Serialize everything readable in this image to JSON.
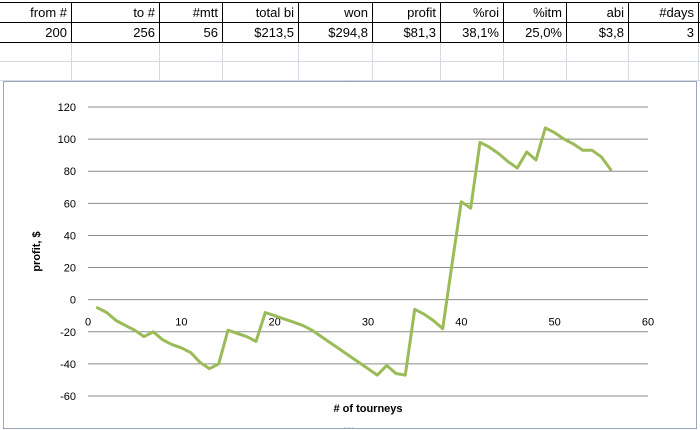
{
  "table": {
    "headers": [
      "from #",
      "to #",
      "#mtt",
      "total bi",
      "won",
      "profit",
      "%roi",
      "%itm",
      "abi",
      "#days"
    ],
    "values": [
      "200",
      "256",
      "56",
      "$213,5",
      "$294,8",
      "$81,3",
      "38,1%",
      "25,0%",
      "$3,8",
      "3"
    ]
  },
  "chart_data": {
    "type": "line",
    "xlabel": "# of tourneys",
    "ylabel": "profit, $",
    "xlim": [
      0,
      60
    ],
    "ylim": [
      -60,
      120
    ],
    "x_ticks": [
      "0",
      "10",
      "20",
      "30",
      "40",
      "50",
      "60"
    ],
    "y_ticks": [
      "120",
      "100",
      "80",
      "60",
      "40",
      "20",
      "0",
      "-20",
      "-40",
      "-60"
    ],
    "grid": "horizontal",
    "line_color": "#9bbb59",
    "series": [
      {
        "x": [
          1,
          2,
          3,
          4,
          5,
          6,
          7,
          8,
          9,
          10,
          11,
          12,
          13,
          14,
          15,
          16,
          17,
          18,
          19,
          20,
          21,
          22,
          23,
          24,
          25,
          26,
          27,
          28,
          29,
          30,
          31,
          32,
          33,
          34,
          35,
          36,
          37,
          38,
          39,
          40,
          41,
          42,
          43,
          44,
          45,
          46,
          47,
          48,
          49,
          50,
          51,
          52,
          53,
          54,
          55,
          56
        ],
        "y": [
          -5,
          -8,
          -13,
          -16,
          -19,
          -23,
          -20,
          -25,
          -28,
          -30,
          -33,
          -39,
          -43,
          -40,
          -19,
          -21,
          -23,
          -26,
          -8,
          -10,
          -12,
          -14,
          -16,
          -19,
          -23,
          -27,
          -31,
          -35,
          -39,
          -43,
          -47,
          -41,
          -46,
          -47,
          -6,
          -9,
          -13,
          -18,
          22,
          61,
          57,
          98,
          95,
          91,
          86,
          82,
          92,
          87,
          107,
          104,
          100,
          97,
          93,
          93,
          89,
          81
        ]
      }
    ]
  }
}
